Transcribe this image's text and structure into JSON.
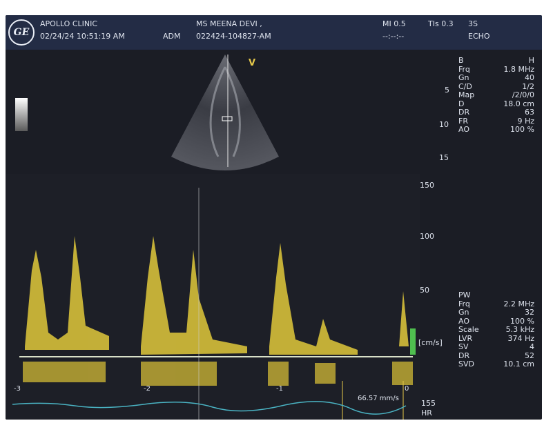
{
  "header": {
    "clinic": "APOLLO CLINIC",
    "datetime": "02/24/24 10:51:19 AM",
    "operator": "ADM",
    "patient_name": "MS MEENA DEVI ,",
    "patient_id": "022424-104827-AM",
    "mi": "MI 0.5",
    "tis": "TIs 0.3",
    "probe": "3S",
    "time_placeholder": "--:--:--",
    "mode": "ECHO",
    "logo_text": "GE"
  },
  "sector_marker": "V",
  "b_mode": {
    "title_k": "B",
    "title_v": "H",
    "params": [
      {
        "k": "Frq",
        "v": "1.8 MHz"
      },
      {
        "k": "Gn",
        "v": "40"
      },
      {
        "k": "C/D",
        "v": "1/2"
      },
      {
        "k": "Map",
        "v": "/2/0/0"
      },
      {
        "k": "D",
        "v": "18.0 cm"
      },
      {
        "k": "DR",
        "v": "63"
      },
      {
        "k": "FR",
        "v": "9 Hz"
      },
      {
        "k": "AO",
        "v": "100 %"
      }
    ],
    "depth_marks": [
      "5",
      "10",
      "15"
    ]
  },
  "velocity_scale": {
    "ticks": [
      "150",
      "100",
      "50"
    ],
    "unit": "[cm/s]"
  },
  "pw": {
    "title": "PW",
    "params": [
      {
        "k": "Frq",
        "v": "2.2 MHz"
      },
      {
        "k": "Gn",
        "v": "32"
      },
      {
        "k": "AO",
        "v": "100 %"
      },
      {
        "k": "Scale",
        "v": "5.3 kHz"
      },
      {
        "k": "LVR",
        "v": "374 Hz"
      },
      {
        "k": "SV",
        "v": "4"
      },
      {
        "k": "DR",
        "v": "52"
      },
      {
        "k": "SVD",
        "v": "10.1 cm"
      }
    ]
  },
  "time_axis": [
    "-3",
    "-2",
    "-1",
    "0"
  ],
  "measurement": "66.57 mm/s",
  "heart_rate": {
    "value": "155",
    "label": "HR"
  }
}
